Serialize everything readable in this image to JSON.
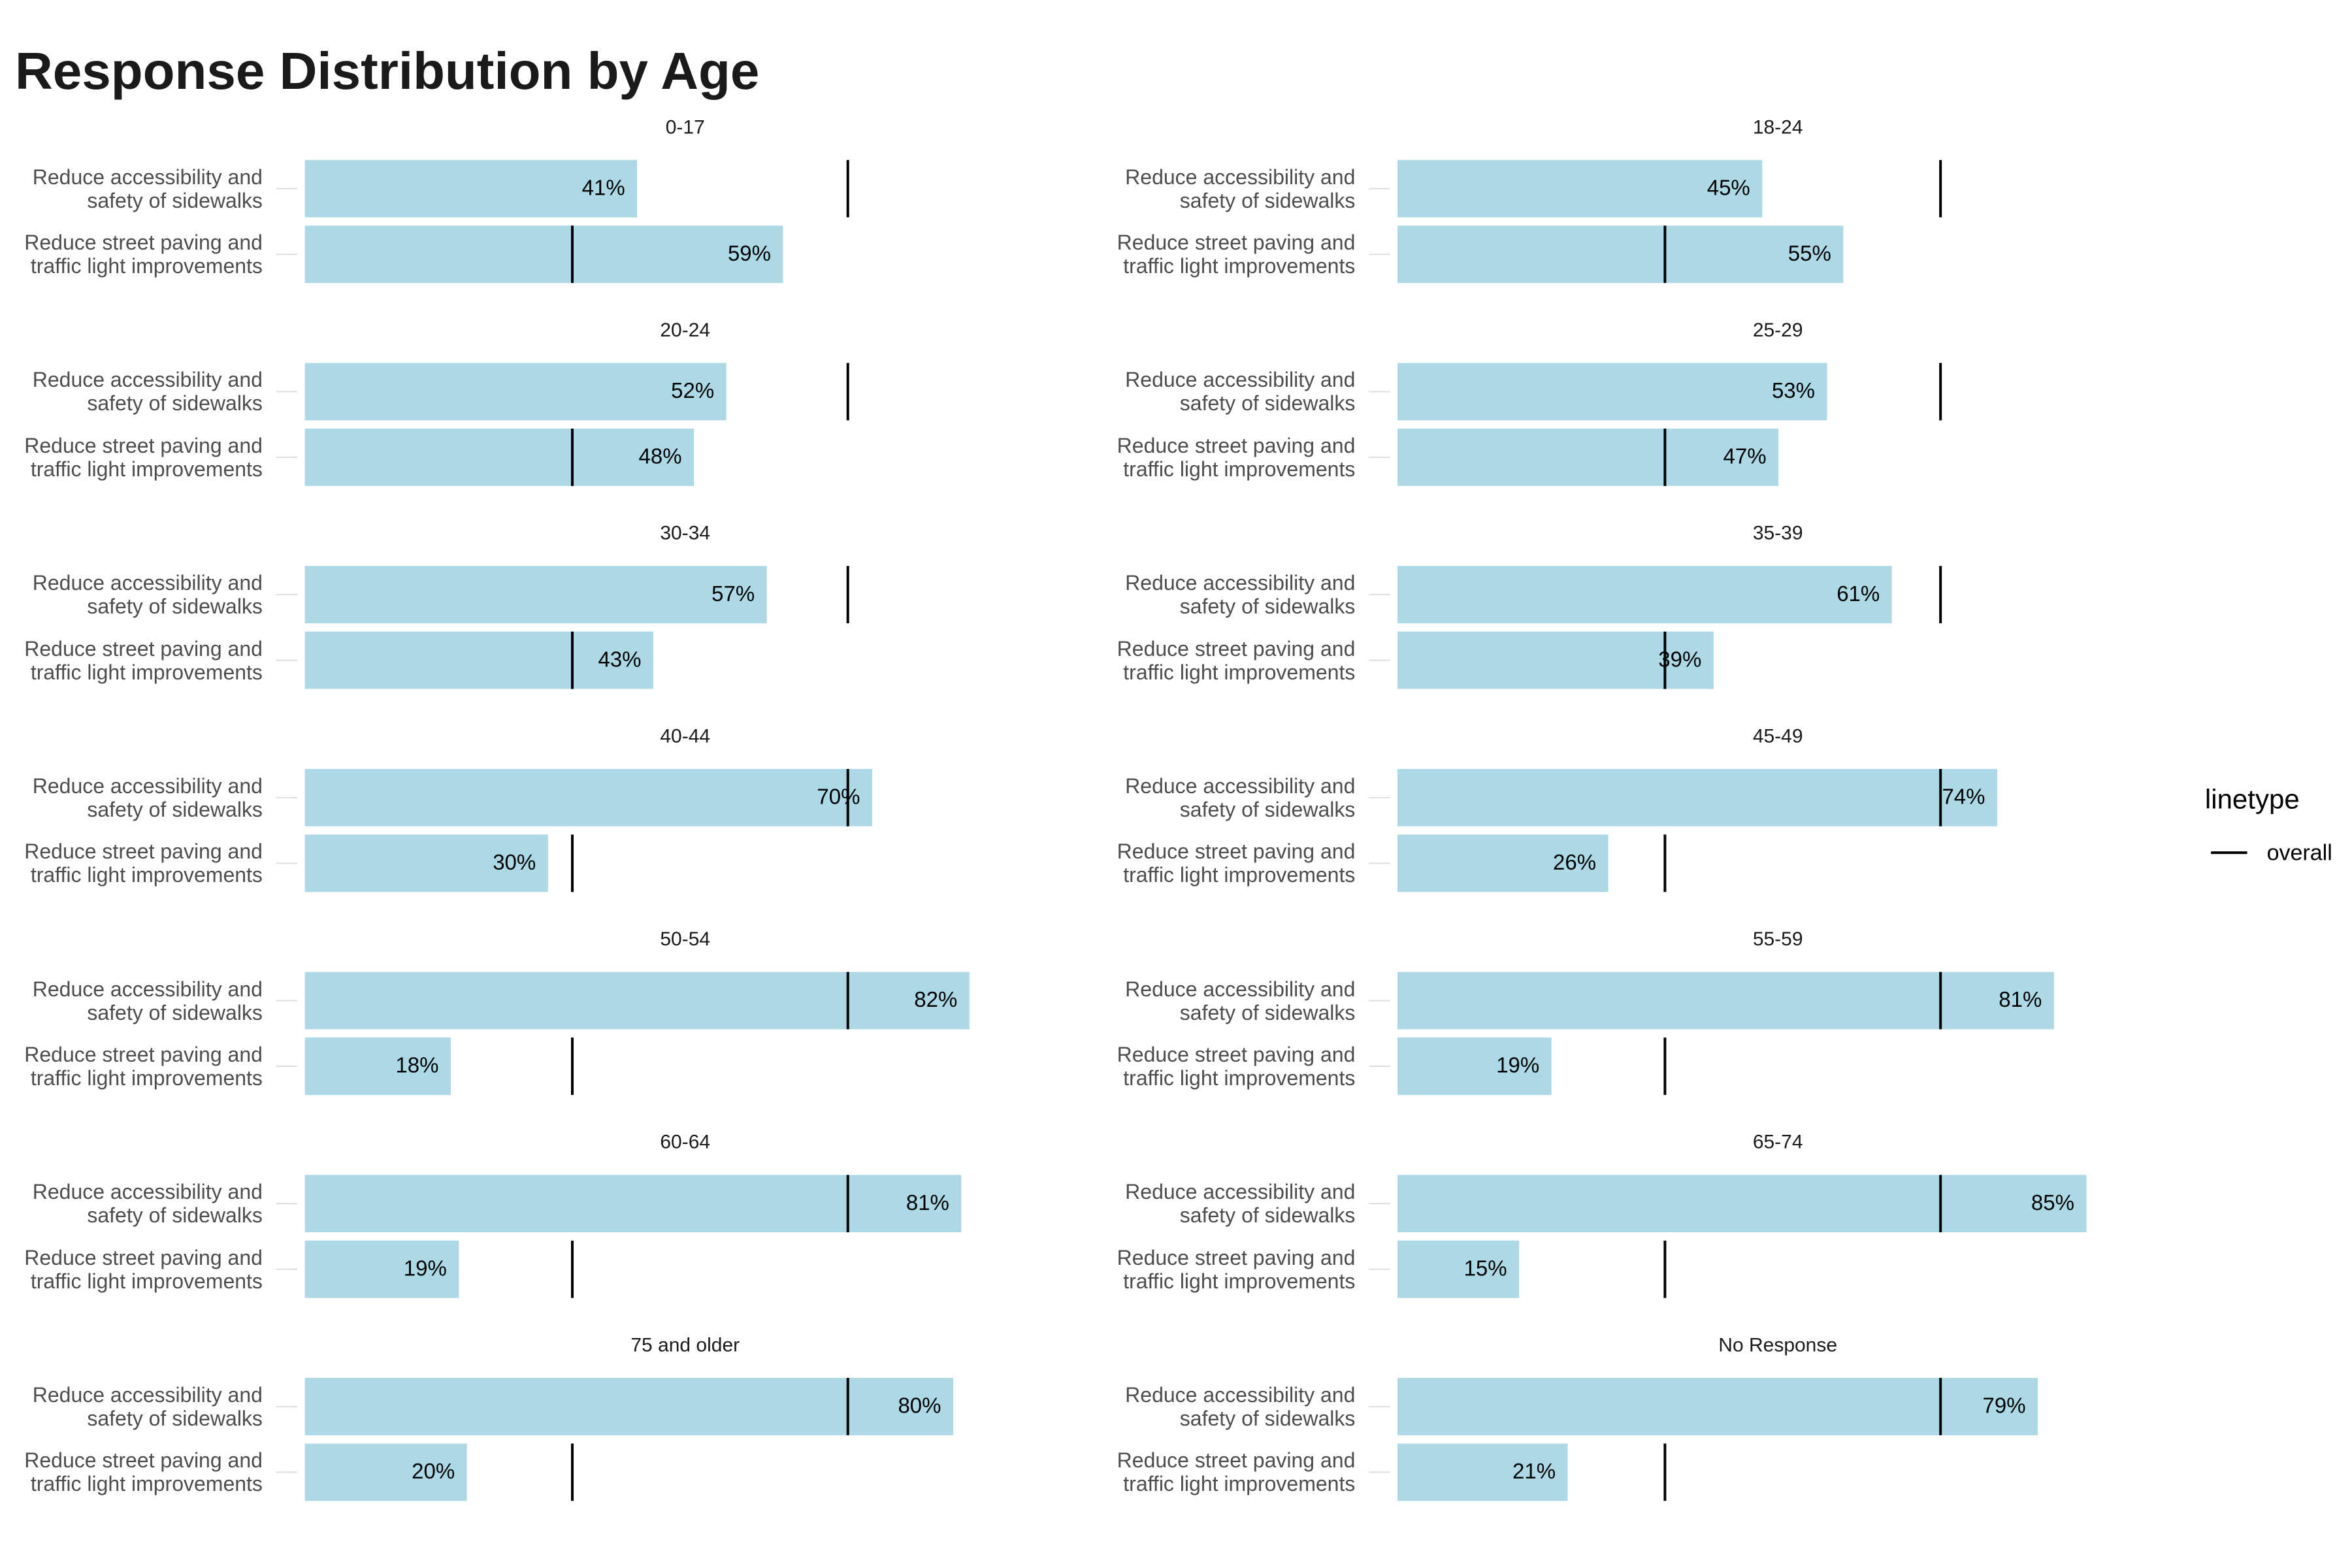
{
  "chart_data": {
    "type": "bar",
    "title": "Response Distribution by Age",
    "categories": [
      "Reduce accessibility and safety of sidewalks",
      "Reduce street paving and traffic light improvements"
    ],
    "color": "#add8e6",
    "xlim": [
      0,
      89
    ],
    "panels": [
      {
        "name": "0-17",
        "values": [
          41,
          59
        ],
        "value_labels": [
          "41%",
          "59%"
        ]
      },
      {
        "name": "18-24",
        "values": [
          45,
          55
        ],
        "value_labels": [
          "45%",
          "55%"
        ]
      },
      {
        "name": "20-24",
        "values": [
          52,
          48
        ],
        "value_labels": [
          "52%",
          "48%"
        ]
      },
      {
        "name": "25-29",
        "values": [
          53,
          47
        ],
        "value_labels": [
          "53%",
          "47%"
        ]
      },
      {
        "name": "30-34",
        "values": [
          57,
          43
        ],
        "value_labels": [
          "57%",
          "43%"
        ]
      },
      {
        "name": "35-39",
        "values": [
          61,
          39
        ],
        "value_labels": [
          "61%",
          "39%"
        ]
      },
      {
        "name": "40-44",
        "values": [
          70,
          30
        ],
        "value_labels": [
          "70%",
          "30%"
        ]
      },
      {
        "name": "45-49",
        "values": [
          74,
          26
        ],
        "value_labels": [
          "74%",
          "26%"
        ]
      },
      {
        "name": "50-54",
        "values": [
          82,
          18
        ],
        "value_labels": [
          "82%",
          "18%"
        ]
      },
      {
        "name": "55-59",
        "values": [
          81,
          19
        ],
        "value_labels": [
          "81%",
          "19%"
        ]
      },
      {
        "name": "60-64",
        "values": [
          81,
          19
        ],
        "value_labels": [
          "81%",
          "19%"
        ]
      },
      {
        "name": "65-74",
        "values": [
          85,
          15
        ],
        "value_labels": [
          "85%",
          "15%"
        ]
      },
      {
        "name": "75 and older",
        "values": [
          80,
          20
        ],
        "value_labels": [
          "80%",
          "20%"
        ]
      },
      {
        "name": "No Response",
        "values": [
          79,
          21
        ],
        "value_labels": [
          "79%",
          "21%"
        ]
      }
    ],
    "reference": {
      "name": "overall",
      "values": [
        67,
        33
      ],
      "color": "#000000"
    },
    "legend_title": "linetype"
  }
}
